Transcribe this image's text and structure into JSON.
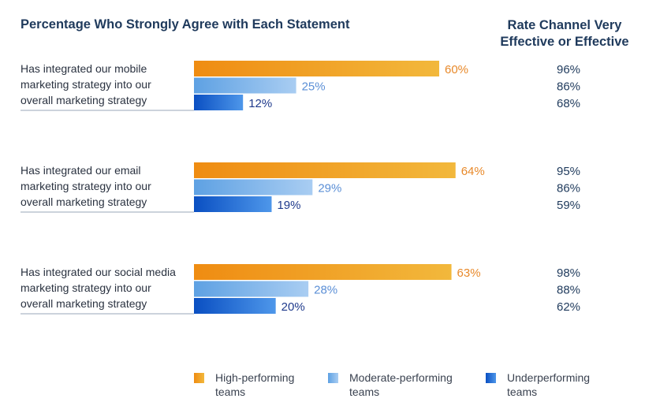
{
  "chart_data": {
    "type": "bar",
    "title": "Percentage Who Strongly Agree with Each Statement",
    "right_title": [
      "Rate Channel Very",
      "Effective or Effective"
    ],
    "categories": [
      [
        "Has integrated our mobile",
        "marketing strategy into our",
        "overall marketing strategy"
      ],
      [
        "Has integrated our email",
        "marketing strategy into our",
        "overall marketing strategy"
      ],
      [
        "Has integrated our social media",
        "marketing strategy into our",
        "overall marketing strategy"
      ]
    ],
    "series": [
      {
        "name": "High-performing teams",
        "values": [
          60,
          64,
          63
        ],
        "labels": [
          "60%",
          "64%",
          "63%"
        ],
        "effective": [
          "96%",
          "95%",
          "98%"
        ]
      },
      {
        "name": "Moderate-performing teams",
        "values": [
          25,
          29,
          28
        ],
        "labels": [
          "25%",
          "29%",
          "28%"
        ],
        "effective": [
          "86%",
          "86%",
          "88%"
        ]
      },
      {
        "name": "Underperforming teams",
        "values": [
          12,
          19,
          20
        ],
        "labels": [
          "12%",
          "19%",
          "20%"
        ],
        "effective": [
          "68%",
          "59%",
          "62%"
        ]
      }
    ],
    "legend": [
      {
        "lines": [
          "High-performing",
          "teams"
        ]
      },
      {
        "lines": [
          "Moderate-performing",
          "teams"
        ]
      },
      {
        "lines": [
          "Underperforming",
          "teams"
        ]
      }
    ],
    "xlim": [
      0,
      100
    ],
    "grid": false,
    "legend_position": "bottom"
  },
  "colors": {
    "high_start": "#ef8c12",
    "high_end": "#f2b83c",
    "moderate_start": "#5ea1e3",
    "moderate_end": "#a9cdf2",
    "under_start": "#0a4fc2",
    "under_end": "#4e97ea",
    "label_high": "#e8892a",
    "label_moderate": "#5b8fd6",
    "label_under": "#1f3a8c",
    "text": "#1f3a5c"
  }
}
